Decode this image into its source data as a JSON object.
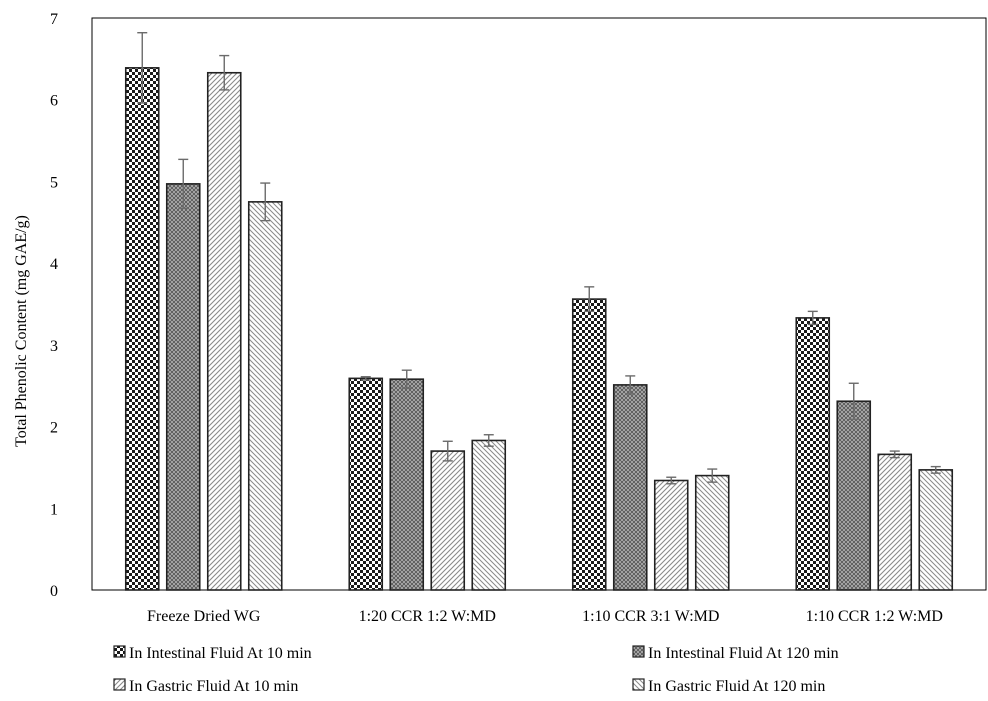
{
  "chart_data": {
    "type": "bar",
    "title": "",
    "xlabel": "",
    "ylabel": "Total Phenolic Content (mg GAE/g)",
    "ylim": [
      0,
      7
    ],
    "yticks": [
      0,
      1,
      2,
      3,
      4,
      5,
      6,
      7
    ],
    "grid": false,
    "legend_position": "bottom",
    "categories": [
      "Freeze Dried WG",
      "1:20 CCR 1:2 W:MD",
      "1:10 CCR 3:1 W:MD",
      "1:10 CCR 1:2 W:MD"
    ],
    "series": [
      {
        "name": "In Intestinal Fluid At 10 min",
        "pattern": "checker",
        "values": [
          6.39,
          2.59,
          3.56,
          3.33
        ],
        "errors": [
          0.43,
          0.02,
          0.15,
          0.08
        ]
      },
      {
        "name": "In Intestinal Fluid At 120 min",
        "pattern": "crosshatch",
        "values": [
          4.97,
          2.58,
          2.51,
          2.31
        ],
        "errors": [
          0.3,
          0.11,
          0.11,
          0.22
        ]
      },
      {
        "name": "In Gastric Fluid At 10 min",
        "pattern": "diag-up",
        "values": [
          6.33,
          1.7,
          1.34,
          1.66
        ],
        "errors": [
          0.21,
          0.12,
          0.04,
          0.04
        ]
      },
      {
        "name": "In Gastric Fluid At 120 min",
        "pattern": "diag-down",
        "values": [
          4.75,
          1.83,
          1.4,
          1.47
        ],
        "errors": [
          0.23,
          0.07,
          0.08,
          0.04
        ]
      }
    ]
  }
}
